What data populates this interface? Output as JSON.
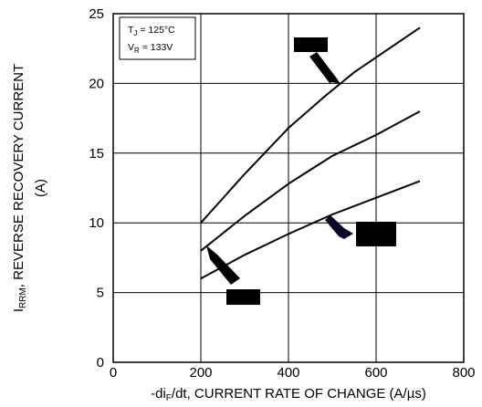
{
  "chart_data": {
    "type": "line",
    "xlabel_prefix": "-di",
    "xlabel_sub": "F",
    "xlabel_suffix": "/dt, CURRENT RATE OF CHANGE (A/µs)",
    "ylabel_prefix": "I",
    "ylabel_sub": "RRM",
    "ylabel_suffix": ", REVERSE RECOVERY CURRENT",
    "ylabel_line2": "(A)",
    "xlim": [
      0,
      800
    ],
    "ylim": [
      0,
      25
    ],
    "x_ticks": [
      0,
      200,
      400,
      600,
      800
    ],
    "y_ticks": [
      0,
      5,
      10,
      15,
      20,
      25
    ],
    "grid": true,
    "conditions": {
      "tj_main": "T",
      "tj_sub": "J",
      "tj_value": " = 125°C",
      "vr_main": "V",
      "vr_sub": "R",
      "vr_value": " = 133V"
    },
    "legend_position": "top-left",
    "series": [
      {
        "x": [
          200,
          300,
          400,
          480,
          550,
          700
        ],
        "values": [
          10,
          13.5,
          16.8,
          19,
          20.8,
          24
        ]
      },
      {
        "x": [
          200,
          300,
          400,
          500,
          600,
          700
        ],
        "values": [
          8,
          10.5,
          12.8,
          14.8,
          16.3,
          18
        ]
      },
      {
        "x": [
          200,
          300,
          400,
          500,
          600,
          700
        ],
        "values": [
          6,
          7.7,
          9.2,
          10.6,
          11.8,
          13
        ]
      }
    ],
    "colors": {
      "line": "#000000",
      "grid": "#000000",
      "redaction": "#000000",
      "arrow_dark": "#0a0a28"
    }
  }
}
